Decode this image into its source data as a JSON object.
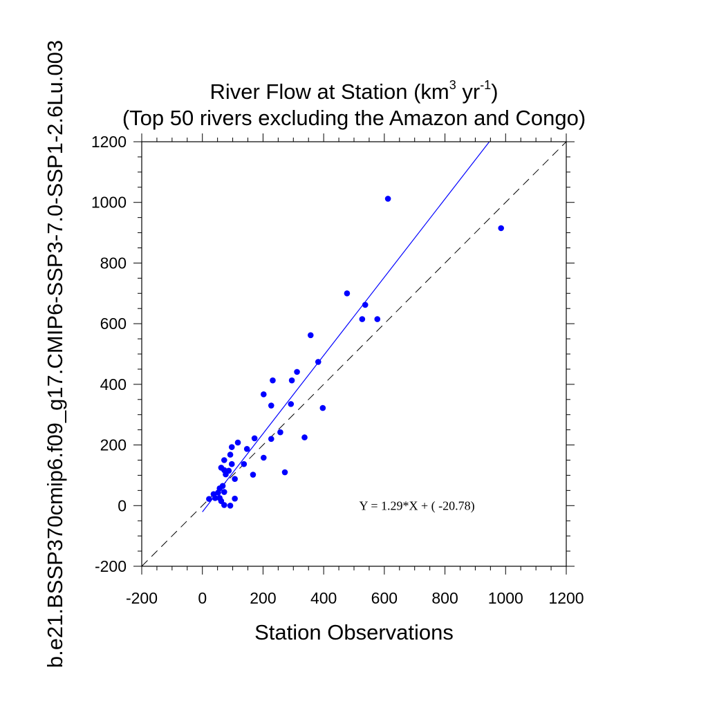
{
  "chart_data": {
    "type": "scatter",
    "title_line1": "River Flow at Station (km",
    "title_sup1": "3",
    "title_mid": " yr",
    "title_sup2": "-1",
    "title_end": ")",
    "title_line2": "(Top 50 rivers excluding the Amazon and Congo)",
    "xlabel": "Station Observations",
    "ylabel": "b.e21.BSSP370cmip6.f09_g17.CMIP6-SSP3-7.0-SSP1-2.6Lu.003",
    "xlim": [
      -200,
      1200
    ],
    "ylim": [
      -200,
      1200
    ],
    "xticks": [
      -200,
      0,
      200,
      400,
      600,
      800,
      1000,
      1200
    ],
    "yticks": [
      -200,
      0,
      200,
      400,
      600,
      800,
      1000,
      1200
    ],
    "xtick_labels": [
      "-200",
      "0",
      "200",
      "400",
      "600",
      "800",
      "1000",
      "1200"
    ],
    "ytick_labels": [
      "-200",
      "0",
      "200",
      "400",
      "600",
      "800",
      "1000",
      "1200"
    ],
    "point_color": "#0000ff",
    "fit_color": "#0000ff",
    "fit": {
      "slope": 1.29,
      "intercept": -20.78
    },
    "equation_label": "Y =  1.29*X + (  -20.78)",
    "equation_anchor": [
      540,
      0
    ],
    "points": [
      [
        612,
        1012
      ],
      [
        985,
        915
      ],
      [
        477,
        700
      ],
      [
        537,
        662
      ],
      [
        527,
        615
      ],
      [
        577,
        615
      ],
      [
        357,
        562
      ],
      [
        382,
        474
      ],
      [
        312,
        441
      ],
      [
        232,
        413
      ],
      [
        295,
        413
      ],
      [
        202,
        367
      ],
      [
        227,
        330
      ],
      [
        292,
        335
      ],
      [
        397,
        322
      ],
      [
        257,
        242
      ],
      [
        227,
        220
      ],
      [
        337,
        225
      ],
      [
        172,
        222
      ],
      [
        117,
        208
      ],
      [
        97,
        193
      ],
      [
        147,
        187
      ],
      [
        202,
        158
      ],
      [
        92,
        168
      ],
      [
        72,
        150
      ],
      [
        97,
        137
      ],
      [
        137,
        137
      ],
      [
        62,
        125
      ],
      [
        72,
        117
      ],
      [
        87,
        115
      ],
      [
        77,
        103
      ],
      [
        167,
        102
      ],
      [
        272,
        110
      ],
      [
        107,
        88
      ],
      [
        67,
        65
      ],
      [
        57,
        57
      ],
      [
        72,
        45
      ],
      [
        52,
        43
      ],
      [
        37,
        38
      ],
      [
        22,
        22
      ],
      [
        42,
        25
      ],
      [
        57,
        25
      ],
      [
        107,
        23
      ],
      [
        62,
        15
      ],
      [
        72,
        2
      ],
      [
        92,
        0
      ]
    ]
  }
}
